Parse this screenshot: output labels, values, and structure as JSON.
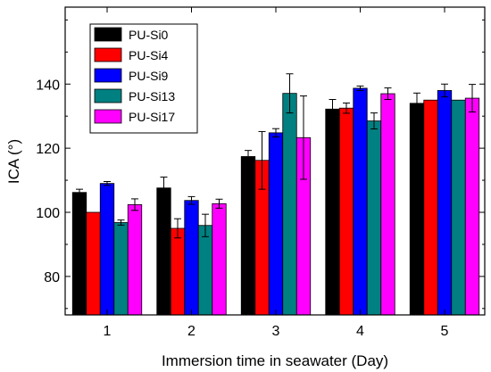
{
  "chart_data": {
    "type": "bar",
    "xlabel": "Immersion time in seawater (Day)",
    "ylabel": "ICA (°)",
    "categories": [
      "1",
      "2",
      "3",
      "4",
      "5"
    ],
    "ylim": [
      68,
      164
    ],
    "yticks": [
      80,
      100,
      120,
      140
    ],
    "grid": false,
    "legend_position": "top-left",
    "series": [
      {
        "name": "PU-Si0",
        "color": "#000000",
        "values": [
          106.2,
          107.6,
          117.4,
          132.2,
          134.0
        ],
        "errors": [
          1.0,
          3.4,
          1.9,
          3.0,
          3.2
        ]
      },
      {
        "name": "PU-Si4",
        "color": "#ff0000",
        "values": [
          100.0,
          95.0,
          116.2,
          132.5,
          135.0
        ],
        "errors": [
          0.0,
          3.0,
          9.0,
          1.6,
          0.0
        ]
      },
      {
        "name": "PU-Si9",
        "color": "#0000ff",
        "values": [
          109.0,
          103.7,
          124.8,
          138.7,
          138.0
        ],
        "errors": [
          0.6,
          1.2,
          1.3,
          0.7,
          2.0
        ]
      },
      {
        "name": "PU-Si13",
        "color": "#008080",
        "values": [
          96.8,
          95.9,
          137.1,
          128.5,
          135.0
        ],
        "errors": [
          0.8,
          3.5,
          6.1,
          2.5,
          0.0
        ]
      },
      {
        "name": "PU-Si17",
        "color": "#ff00ff",
        "values": [
          102.4,
          102.7,
          123.3,
          137.0,
          135.6
        ],
        "errors": [
          1.8,
          1.4,
          13.0,
          1.8,
          4.3
        ]
      }
    ]
  }
}
